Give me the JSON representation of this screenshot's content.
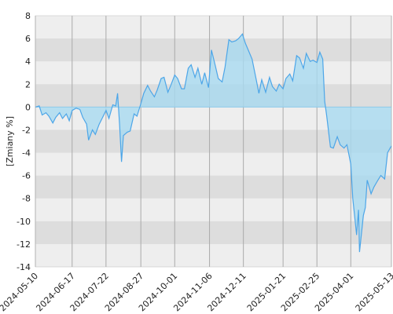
{
  "chart_data": {
    "type": "area",
    "y_label": "[Zmiany %]",
    "x": [
      "2024-05-10",
      "2024-05-14",
      "2024-05-17",
      "2024-05-21",
      "2024-05-24",
      "2024-05-28",
      "2024-05-31",
      "2024-06-04",
      "2024-06-07",
      "2024-06-11",
      "2024-06-14",
      "2024-06-17",
      "2024-06-21",
      "2024-06-25",
      "2024-06-28",
      "2024-07-02",
      "2024-07-04",
      "2024-07-08",
      "2024-07-11",
      "2024-07-15",
      "2024-07-18",
      "2024-07-22",
      "2024-07-25",
      "2024-07-29",
      "2024-08-01",
      "2024-08-03",
      "2024-08-05",
      "2024-08-07",
      "2024-08-09",
      "2024-08-13",
      "2024-08-16",
      "2024-08-20",
      "2024-08-23",
      "2024-08-27",
      "2024-08-30",
      "2024-09-03",
      "2024-09-06",
      "2024-09-10",
      "2024-09-13",
      "2024-09-17",
      "2024-09-20",
      "2024-09-24",
      "2024-09-27",
      "2024-10-01",
      "2024-10-04",
      "2024-10-08",
      "2024-10-11",
      "2024-10-15",
      "2024-10-18",
      "2024-10-22",
      "2024-10-25",
      "2024-10-29",
      "2024-11-01",
      "2024-11-05",
      "2024-11-08",
      "2024-11-12",
      "2024-11-15",
      "2024-11-19",
      "2024-11-22",
      "2024-11-26",
      "2024-11-29",
      "2024-12-03",
      "2024-12-06",
      "2024-12-10",
      "2024-12-13",
      "2024-12-17",
      "2024-12-20",
      "2024-12-24",
      "2024-12-27",
      "2024-12-30",
      "2025-01-03",
      "2025-01-07",
      "2025-01-10",
      "2025-01-14",
      "2025-01-17",
      "2025-01-21",
      "2025-01-24",
      "2025-01-28",
      "2025-01-31",
      "2025-02-04",
      "2025-02-07",
      "2025-02-11",
      "2025-02-14",
      "2025-02-18",
      "2025-02-21",
      "2025-02-25",
      "2025-02-28",
      "2025-03-03",
      "2025-03-05",
      "2025-03-07",
      "2025-03-11",
      "2025-03-14",
      "2025-03-18",
      "2025-03-21",
      "2025-03-25",
      "2025-03-28",
      "2025-04-01",
      "2025-04-03",
      "2025-04-07",
      "2025-04-09",
      "2025-04-10",
      "2025-04-14",
      "2025-04-16",
      "2025-04-18",
      "2025-04-22",
      "2025-04-25",
      "2025-04-29",
      "2025-05-02",
      "2025-05-06",
      "2025-05-09",
      "2025-05-13"
    ],
    "series": [
      {
        "color": "#4da6e8",
        "values": [
          0,
          0.1,
          -0.7,
          -0.5,
          -0.8,
          -1.4,
          -0.9,
          -0.5,
          -1.0,
          -0.6,
          -1.2,
          -0.3,
          -0.1,
          -0.2,
          -0.9,
          -1.5,
          -2.9,
          -2.0,
          -2.4,
          -1.5,
          -1.0,
          -0.3,
          -1.0,
          0.2,
          0.1,
          1.2,
          -1.5,
          -4.8,
          -2.5,
          -2.2,
          -2.1,
          -0.6,
          -0.8,
          0.3,
          1.2,
          1.9,
          1.4,
          0.9,
          1.5,
          2.5,
          2.6,
          1.3,
          1.9,
          2.8,
          2.5,
          1.6,
          1.6,
          3.4,
          3.7,
          2.6,
          3.4,
          2.0,
          3.0,
          1.7,
          5.0,
          3.6,
          2.5,
          2.2,
          3.5,
          5.9,
          5.7,
          5.8,
          6.0,
          6.4,
          5.6,
          4.8,
          4.2,
          2.5,
          1.2,
          2.4,
          1.3,
          2.6,
          1.8,
          1.4,
          2.0,
          1.6,
          2.5,
          2.9,
          2.3,
          4.5,
          4.3,
          3.4,
          4.7,
          4.0,
          4.1,
          3.9,
          4.8,
          4.2,
          0.5,
          -0.7,
          -3.5,
          -3.6,
          -2.6,
          -3.3,
          -3.6,
          -3.3,
          -5.0,
          -8.0,
          -11.2,
          -9.0,
          -12.7,
          -9.5,
          -8.8,
          -6.4,
          -7.6,
          -7.0,
          -6.4,
          -6.0,
          -6.3,
          -4.0,
          -3.4
        ]
      }
    ],
    "xlim": [
      "2024-05-10",
      "2025-05-13"
    ],
    "xticks": [
      "2024-05-10",
      "2024-06-17",
      "2024-07-22",
      "2024-08-27",
      "2024-10-01",
      "2024-11-06",
      "2024-12-11",
      "2025-01-21",
      "2025-02-25",
      "2025-04-01",
      "2025-05-13"
    ],
    "ylim": [
      -14,
      8
    ],
    "yticks": [
      -14,
      -12,
      -10,
      -8,
      -6,
      -4,
      -2,
      0,
      2,
      4,
      6,
      8
    ],
    "grid": true
  }
}
